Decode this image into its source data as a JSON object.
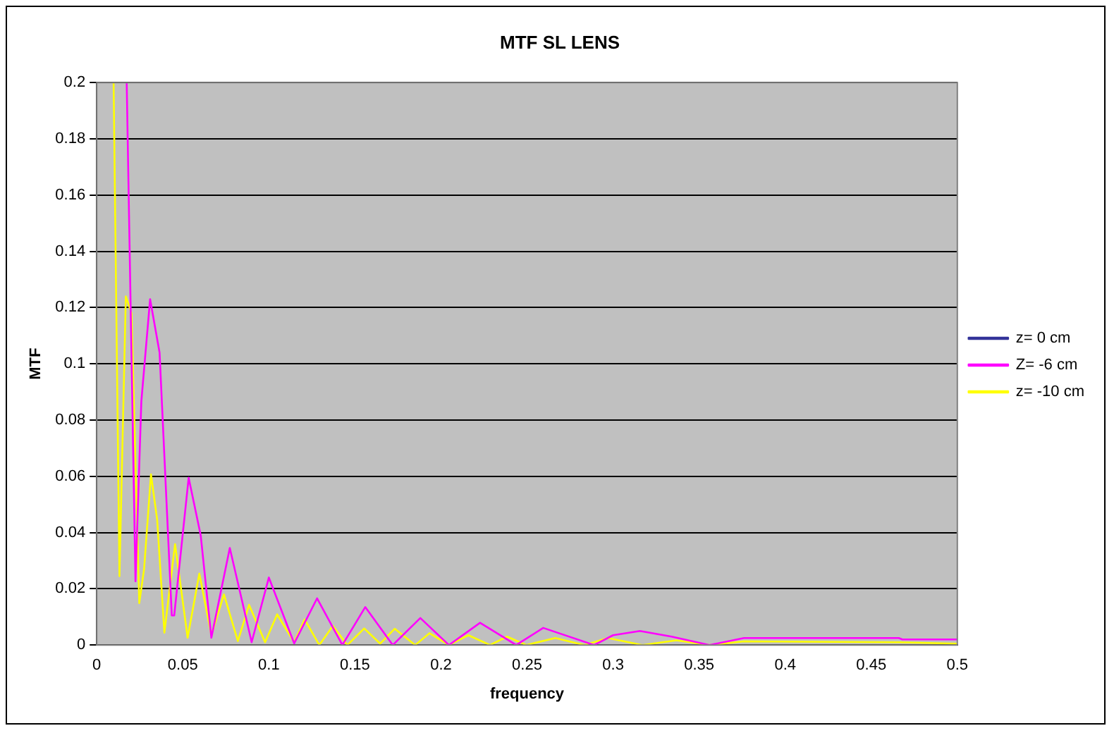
{
  "chart_data": {
    "type": "line",
    "title": "MTF SL LENS",
    "xlabel": "frequency",
    "ylabel": "MTF",
    "xlim": [
      0,
      0.5
    ],
    "ylim": [
      0,
      0.2
    ],
    "xticks": [
      0,
      0.05,
      0.1,
      0.15,
      0.2,
      0.25,
      0.3,
      0.35,
      0.4,
      0.45,
      0.5
    ],
    "yticks": [
      0,
      0.02,
      0.04,
      0.06,
      0.08,
      0.1,
      0.12,
      0.14,
      0.16,
      0.18,
      0.2
    ],
    "grid": "y",
    "legend": "right",
    "marker": "none",
    "line_style": "solid",
    "series": [
      {
        "name": "z= 0 cm",
        "color": "#333399"
      },
      {
        "name": "Z= -6 cm",
        "color": "#ff00ff",
        "x": [
          0.0174,
          0.0225,
          0.0259,
          0.031,
          0.0365,
          0.0436,
          0.045,
          0.0534,
          0.0604,
          0.0666,
          0.0773,
          0.09,
          0.1,
          0.1147,
          0.128,
          0.1427,
          0.156,
          0.172,
          0.188,
          0.2046,
          0.2227,
          0.2437,
          0.2594,
          0.289,
          0.3,
          0.3156,
          0.334,
          0.356,
          0.376,
          0.466,
          0.468,
          0.5
        ],
        "values": [
          0.2,
          0.0227,
          0.0866,
          0.123,
          0.104,
          0.0105,
          0.0105,
          0.0595,
          0.039,
          0.0026,
          0.0345,
          0.001,
          0.024,
          0.0006,
          0.0166,
          0,
          0.0135,
          0,
          0.0096,
          0,
          0.0079,
          0,
          0.0061,
          0,
          0.0035,
          0.005,
          0.003,
          0,
          0.0025,
          0.0025,
          0.002,
          0.002
        ]
      },
      {
        "name": "z= -10 cm",
        "color": "#ffff00",
        "x": [
          0.0098,
          0.0132,
          0.0169,
          0.0202,
          0.0247,
          0.0275,
          0.0315,
          0.0351,
          0.0393,
          0.0455,
          0.0528,
          0.0596,
          0.0666,
          0.0739,
          0.082,
          0.0885,
          0.0978,
          0.1048,
          0.1147,
          0.1208,
          0.1293,
          0.1372,
          0.1456,
          0.1554,
          0.1647,
          0.1731,
          0.185,
          0.1933,
          0.2046,
          0.2159,
          0.2285,
          0.2384,
          0.2496,
          0.2664,
          0.2833,
          0.297,
          0.317,
          0.3367,
          0.356,
          0.376,
          0.466,
          0.5
        ],
        "values": [
          0.2,
          0.0245,
          0.124,
          0.118,
          0.0149,
          0.027,
          0.0607,
          0.0446,
          0.0044,
          0.0359,
          0.0026,
          0.0254,
          0.0035,
          0.018,
          0.0014,
          0.0143,
          0.001,
          0.0109,
          0.001,
          0.0091,
          0,
          0.0068,
          0,
          0.0059,
          0.0005,
          0.0058,
          0,
          0.0042,
          0,
          0.0035,
          0,
          0.003,
          0,
          0.0025,
          0,
          0.0025,
          0,
          0.0017,
          0,
          0.0013,
          0.001,
          0.0005
        ]
      }
    ]
  }
}
